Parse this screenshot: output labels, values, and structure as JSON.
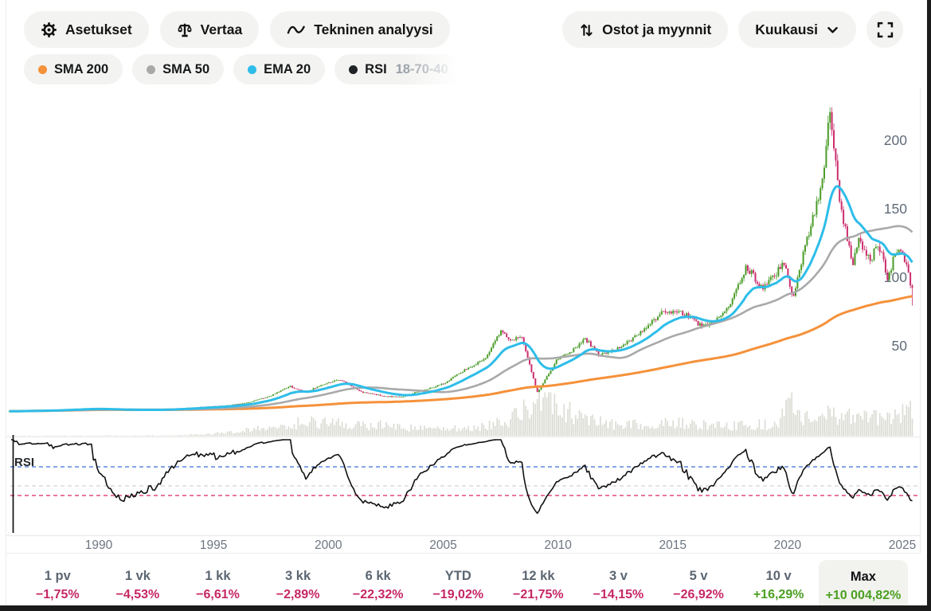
{
  "toolbar": {
    "settings": "Asetukset",
    "compare": "Vertaa",
    "technical_analysis": "Tekninen analyysi",
    "trades": "Ostot ja myynnit",
    "interval": "Kuukausi"
  },
  "indicators": [
    {
      "label": "SMA 200",
      "dot_color": "#f5913a",
      "fade": false
    },
    {
      "label": "SMA 50",
      "dot_color": "#a9a9a9",
      "fade": false
    },
    {
      "label": "EMA 20",
      "dot_color": "#2ebde9",
      "fade": false
    },
    {
      "label": "RSI",
      "params": "18-70-40",
      "dot_color": "#1f2326",
      "fade": true
    }
  ],
  "periods": [
    {
      "label": "1 pv",
      "value": "−1,75%",
      "dir": "down",
      "highlight": false
    },
    {
      "label": "1 vk",
      "value": "−4,53%",
      "dir": "down",
      "highlight": false
    },
    {
      "label": "1 kk",
      "value": "−6,61%",
      "dir": "down",
      "highlight": false
    },
    {
      "label": "3 kk",
      "value": "−2,89%",
      "dir": "down",
      "highlight": false
    },
    {
      "label": "6 kk",
      "value": "−22,32%",
      "dir": "down",
      "highlight": false
    },
    {
      "label": "YTD",
      "value": "−19,02%",
      "dir": "down",
      "highlight": false
    },
    {
      "label": "12 kk",
      "value": "−21,75%",
      "dir": "down",
      "highlight": false
    },
    {
      "label": "3 v",
      "value": "−14,15%",
      "dir": "down",
      "highlight": false
    },
    {
      "label": "5 v",
      "value": "−26,92%",
      "dir": "down",
      "highlight": false
    },
    {
      "label": "10 v",
      "value": "+16,29%",
      "dir": "up",
      "highlight": false
    },
    {
      "label": "Max",
      "value": "+10 004,82%",
      "dir": "up",
      "highlight": true
    }
  ],
  "chart_data": {
    "type": "candlestick",
    "interval": "monthly",
    "x_ticks": [
      1990,
      1995,
      2000,
      2005,
      2010,
      2015,
      2020,
      2025
    ],
    "y_ticks": [
      50,
      100,
      150,
      200
    ],
    "x_range": [
      1986.1,
      2025.42
    ],
    "y_range": [
      0,
      235
    ],
    "rsi_label": "RSI",
    "up_color": "#4a9c28",
    "down_color": "#cb2e6e",
    "volume_color": "#dcdcd6",
    "axis_label_color": "#5f6b78",
    "price_anchors": [
      [
        1986.1,
        2.2
      ],
      [
        1988.0,
        3.0
      ],
      [
        1989.6,
        4.3
      ],
      [
        1991.0,
        3.0
      ],
      [
        1992.6,
        3.2
      ],
      [
        1994.0,
        4.8
      ],
      [
        1995.5,
        6.3
      ],
      [
        1996.5,
        8.5
      ],
      [
        1997.5,
        13.5
      ],
      [
        1998.3,
        20.5
      ],
      [
        1999.0,
        16.0
      ],
      [
        1999.8,
        22.0
      ],
      [
        2000.5,
        25.0
      ],
      [
        2001.5,
        16.0
      ],
      [
        2002.5,
        13.0
      ],
      [
        2003.2,
        12.5
      ],
      [
        2004.0,
        17.0
      ],
      [
        2005.0,
        22.0
      ],
      [
        2006.0,
        33.0
      ],
      [
        2006.8,
        40.0
      ],
      [
        2007.5,
        61.0
      ],
      [
        2007.9,
        54.0
      ],
      [
        2008.4,
        57.0
      ],
      [
        2008.8,
        34.0
      ],
      [
        2009.1,
        16.0
      ],
      [
        2009.6,
        30.0
      ],
      [
        2010.0,
        41.0
      ],
      [
        2010.6,
        46.0
      ],
      [
        2011.2,
        55.0
      ],
      [
        2011.8,
        43.0
      ],
      [
        2012.5,
        47.0
      ],
      [
        2013.0,
        52.0
      ],
      [
        2013.8,
        63.0
      ],
      [
        2014.5,
        74.0
      ],
      [
        2015.2,
        76.0
      ],
      [
        2015.8,
        70.0
      ],
      [
        2016.3,
        64.0
      ],
      [
        2016.9,
        68.0
      ],
      [
        2017.5,
        80.0
      ],
      [
        2018.2,
        108.0
      ],
      [
        2018.6,
        99.0
      ],
      [
        2018.95,
        92.0
      ],
      [
        2019.5,
        103.0
      ],
      [
        2019.9,
        112.0
      ],
      [
        2020.2,
        84.0
      ],
      [
        2020.6,
        110.0
      ],
      [
        2021.0,
        138.0
      ],
      [
        2021.3,
        155.0
      ],
      [
        2021.6,
        183.0
      ],
      [
        2021.83,
        220.0
      ],
      [
        2022.0,
        198.0
      ],
      [
        2022.3,
        152.0
      ],
      [
        2022.6,
        128.0
      ],
      [
        2022.85,
        108.0
      ],
      [
        2023.05,
        128.0
      ],
      [
        2023.3,
        121.0
      ],
      [
        2023.6,
        112.0
      ],
      [
        2023.9,
        124.0
      ],
      [
        2024.1,
        117.0
      ],
      [
        2024.35,
        98.0
      ],
      [
        2024.6,
        112.0
      ],
      [
        2024.85,
        122.0
      ],
      [
        2025.05,
        114.0
      ],
      [
        2025.25,
        103.0
      ],
      [
        2025.4,
        90.0
      ]
    ],
    "volume_rel_anchors": [
      [
        1986.1,
        0.01
      ],
      [
        1993.5,
        0.02
      ],
      [
        1995.0,
        0.06
      ],
      [
        1997.0,
        0.18
      ],
      [
        1998.0,
        0.3
      ],
      [
        2000.0,
        0.35
      ],
      [
        2001.0,
        0.24
      ],
      [
        2002.3,
        0.3
      ],
      [
        2003.5,
        0.2
      ],
      [
        2005.0,
        0.18
      ],
      [
        2006.5,
        0.24
      ],
      [
        2007.5,
        0.32
      ],
      [
        2008.3,
        0.55
      ],
      [
        2008.9,
        0.85
      ],
      [
        2009.4,
        1.0
      ],
      [
        2010.0,
        0.8
      ],
      [
        2010.6,
        0.55
      ],
      [
        2011.5,
        0.4
      ],
      [
        2012.5,
        0.3
      ],
      [
        2013.5,
        0.28
      ],
      [
        2014.5,
        0.3
      ],
      [
        2015.5,
        0.33
      ],
      [
        2016.5,
        0.26
      ],
      [
        2017.5,
        0.24
      ],
      [
        2018.5,
        0.3
      ],
      [
        2019.5,
        0.26
      ],
      [
        2020.2,
        0.85
      ],
      [
        2020.7,
        0.45
      ],
      [
        2021.3,
        0.4
      ],
      [
        2021.9,
        0.55
      ],
      [
        2022.5,
        0.5
      ],
      [
        2023.0,
        0.42
      ],
      [
        2023.8,
        0.45
      ],
      [
        2024.5,
        0.4
      ],
      [
        2025.0,
        0.55
      ],
      [
        2025.4,
        0.73
      ]
    ],
    "indicators": {
      "sma200": {
        "window": 200,
        "color": "#f5913a"
      },
      "sma50": {
        "window": 50,
        "color": "#a9a9a9"
      },
      "ema20": {
        "window": 20,
        "color": "#2ebde9"
      },
      "rsi": {
        "period": 18,
        "upper": 70,
        "mid": 50,
        "lower": 40,
        "line_color": "#111111",
        "upper_color": "#3a6fd8",
        "mid_color": "#d2d2d0",
        "lower_color": "#d9256b"
      }
    }
  }
}
